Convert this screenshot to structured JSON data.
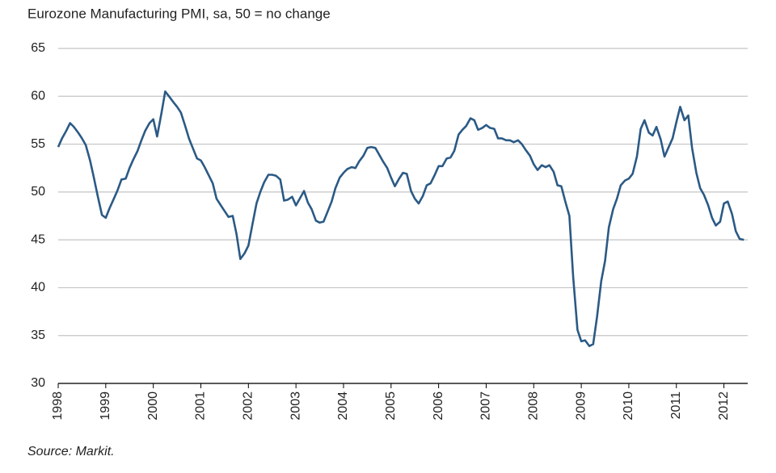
{
  "chart_data": {
    "type": "line",
    "title": "Eurozone Manufacturing PMI, sa, 50 = no change",
    "source": "Source: Markit.",
    "color": "#2b5a85",
    "grid": true,
    "xlim": [
      1998,
      2012.5
    ],
    "xticks": [
      1998,
      1999,
      2000,
      2001,
      2002,
      2003,
      2004,
      2005,
      2006,
      2007,
      2008,
      2009,
      2010,
      2011,
      2012
    ],
    "ylim": [
      30,
      65
    ],
    "yticks": [
      30,
      35,
      40,
      45,
      50,
      55,
      60,
      65
    ],
    "x": [
      1998,
      1998.08,
      1998.17,
      1998.25,
      1998.33,
      1998.42,
      1998.5,
      1998.58,
      1998.67,
      1998.75,
      1998.83,
      1998.92,
      1999,
      1999.08,
      1999.17,
      1999.25,
      1999.33,
      1999.42,
      1999.5,
      1999.58,
      1999.67,
      1999.75,
      1999.83,
      1999.92,
      2000,
      2000.08,
      2000.17,
      2000.25,
      2000.33,
      2000.42,
      2000.5,
      2000.58,
      2000.67,
      2000.75,
      2000.83,
      2000.92,
      2001,
      2001.08,
      2001.17,
      2001.25,
      2001.33,
      2001.42,
      2001.5,
      2001.58,
      2001.67,
      2001.75,
      2001.83,
      2001.92,
      2002,
      2002.08,
      2002.17,
      2002.25,
      2002.33,
      2002.42,
      2002.5,
      2002.58,
      2002.67,
      2002.75,
      2002.83,
      2002.92,
      2003,
      2003.08,
      2003.17,
      2003.25,
      2003.33,
      2003.42,
      2003.5,
      2003.58,
      2003.67,
      2003.75,
      2003.83,
      2003.92,
      2004,
      2004.08,
      2004.17,
      2004.25,
      2004.33,
      2004.42,
      2004.5,
      2004.58,
      2004.67,
      2004.75,
      2004.83,
      2004.92,
      2005,
      2005.08,
      2005.17,
      2005.25,
      2005.33,
      2005.42,
      2005.5,
      2005.58,
      2005.67,
      2005.75,
      2005.83,
      2005.92,
      2006,
      2006.08,
      2006.17,
      2006.25,
      2006.33,
      2006.42,
      2006.5,
      2006.58,
      2006.67,
      2006.75,
      2006.83,
      2006.92,
      2007,
      2007.08,
      2007.17,
      2007.25,
      2007.33,
      2007.42,
      2007.5,
      2007.58,
      2007.67,
      2007.75,
      2007.83,
      2007.92,
      2008,
      2008.08,
      2008.17,
      2008.25,
      2008.33,
      2008.42,
      2008.5,
      2008.58,
      2008.67,
      2008.75,
      2008.83,
      2008.92,
      2009,
      2009.08,
      2009.17,
      2009.25,
      2009.33,
      2009.42,
      2009.5,
      2009.58,
      2009.67,
      2009.75,
      2009.83,
      2009.92,
      2010,
      2010.08,
      2010.17,
      2010.25,
      2010.33,
      2010.42,
      2010.5,
      2010.58,
      2010.67,
      2010.75,
      2010.83,
      2010.92,
      2011,
      2011.08,
      2011.17,
      2011.25,
      2011.33,
      2011.42,
      2011.5,
      2011.58,
      2011.67,
      2011.75,
      2011.83,
      2011.92,
      2012,
      2012.08,
      2012.17,
      2012.25,
      2012.33,
      2012.42
    ],
    "values": [
      54.7,
      55.6,
      56.4,
      57.2,
      56.8,
      56.2,
      55.6,
      54.9,
      53.3,
      51.5,
      49.6,
      47.6,
      47.3,
      48.3,
      49.3,
      50.2,
      51.3,
      51.4,
      52.5,
      53.4,
      54.3,
      55.4,
      56.4,
      57.2,
      57.6,
      55.8,
      58.2,
      60.5,
      60.0,
      59.4,
      58.9,
      58.3,
      56.9,
      55.6,
      54.6,
      53.5,
      53.3,
      52.6,
      51.7,
      50.9,
      49.3,
      48.6,
      48.0,
      47.4,
      47.5,
      45.6,
      43.0,
      43.6,
      44.4,
      46.5,
      48.8,
      50.0,
      51.0,
      51.8,
      51.8,
      51.7,
      51.3,
      49.1,
      49.2,
      49.5,
      48.6,
      49.3,
      50.1,
      48.9,
      48.2,
      47.0,
      46.8,
      46.9,
      48.0,
      49.0,
      50.4,
      51.5,
      52.0,
      52.4,
      52.6,
      52.5,
      53.2,
      53.8,
      54.6,
      54.7,
      54.6,
      53.9,
      53.2,
      52.5,
      51.5,
      50.6,
      51.4,
      52.0,
      51.9,
      50.1,
      49.3,
      48.8,
      49.6,
      50.7,
      50.9,
      51.8,
      52.7,
      52.7,
      53.5,
      53.6,
      54.3,
      56.0,
      56.5,
      56.9,
      57.7,
      57.5,
      56.5,
      56.7,
      57.0,
      56.7,
      56.6,
      55.6,
      55.6,
      55.4,
      55.4,
      55.2,
      55.4,
      55.0,
      54.4,
      53.8,
      52.9,
      52.3,
      52.8,
      52.6,
      52.8,
      52.1,
      50.7,
      50.6,
      48.9,
      47.5,
      41.1,
      35.6,
      34.4,
      34.5,
      33.9,
      34.1,
      36.9,
      40.7,
      42.8,
      46.3,
      48.2,
      49.3,
      50.7,
      51.2,
      51.4,
      51.9,
      53.7,
      56.6,
      57.5,
      56.2,
      55.9,
      56.8,
      55.5,
      53.7,
      54.6,
      55.6,
      57.3,
      58.9,
      57.5,
      58.0,
      54.6,
      52.0,
      50.4,
      49.7,
      48.6,
      47.3,
      46.5,
      46.9,
      48.8,
      49.0,
      47.7,
      45.9,
      45.1,
      45.0
    ]
  }
}
